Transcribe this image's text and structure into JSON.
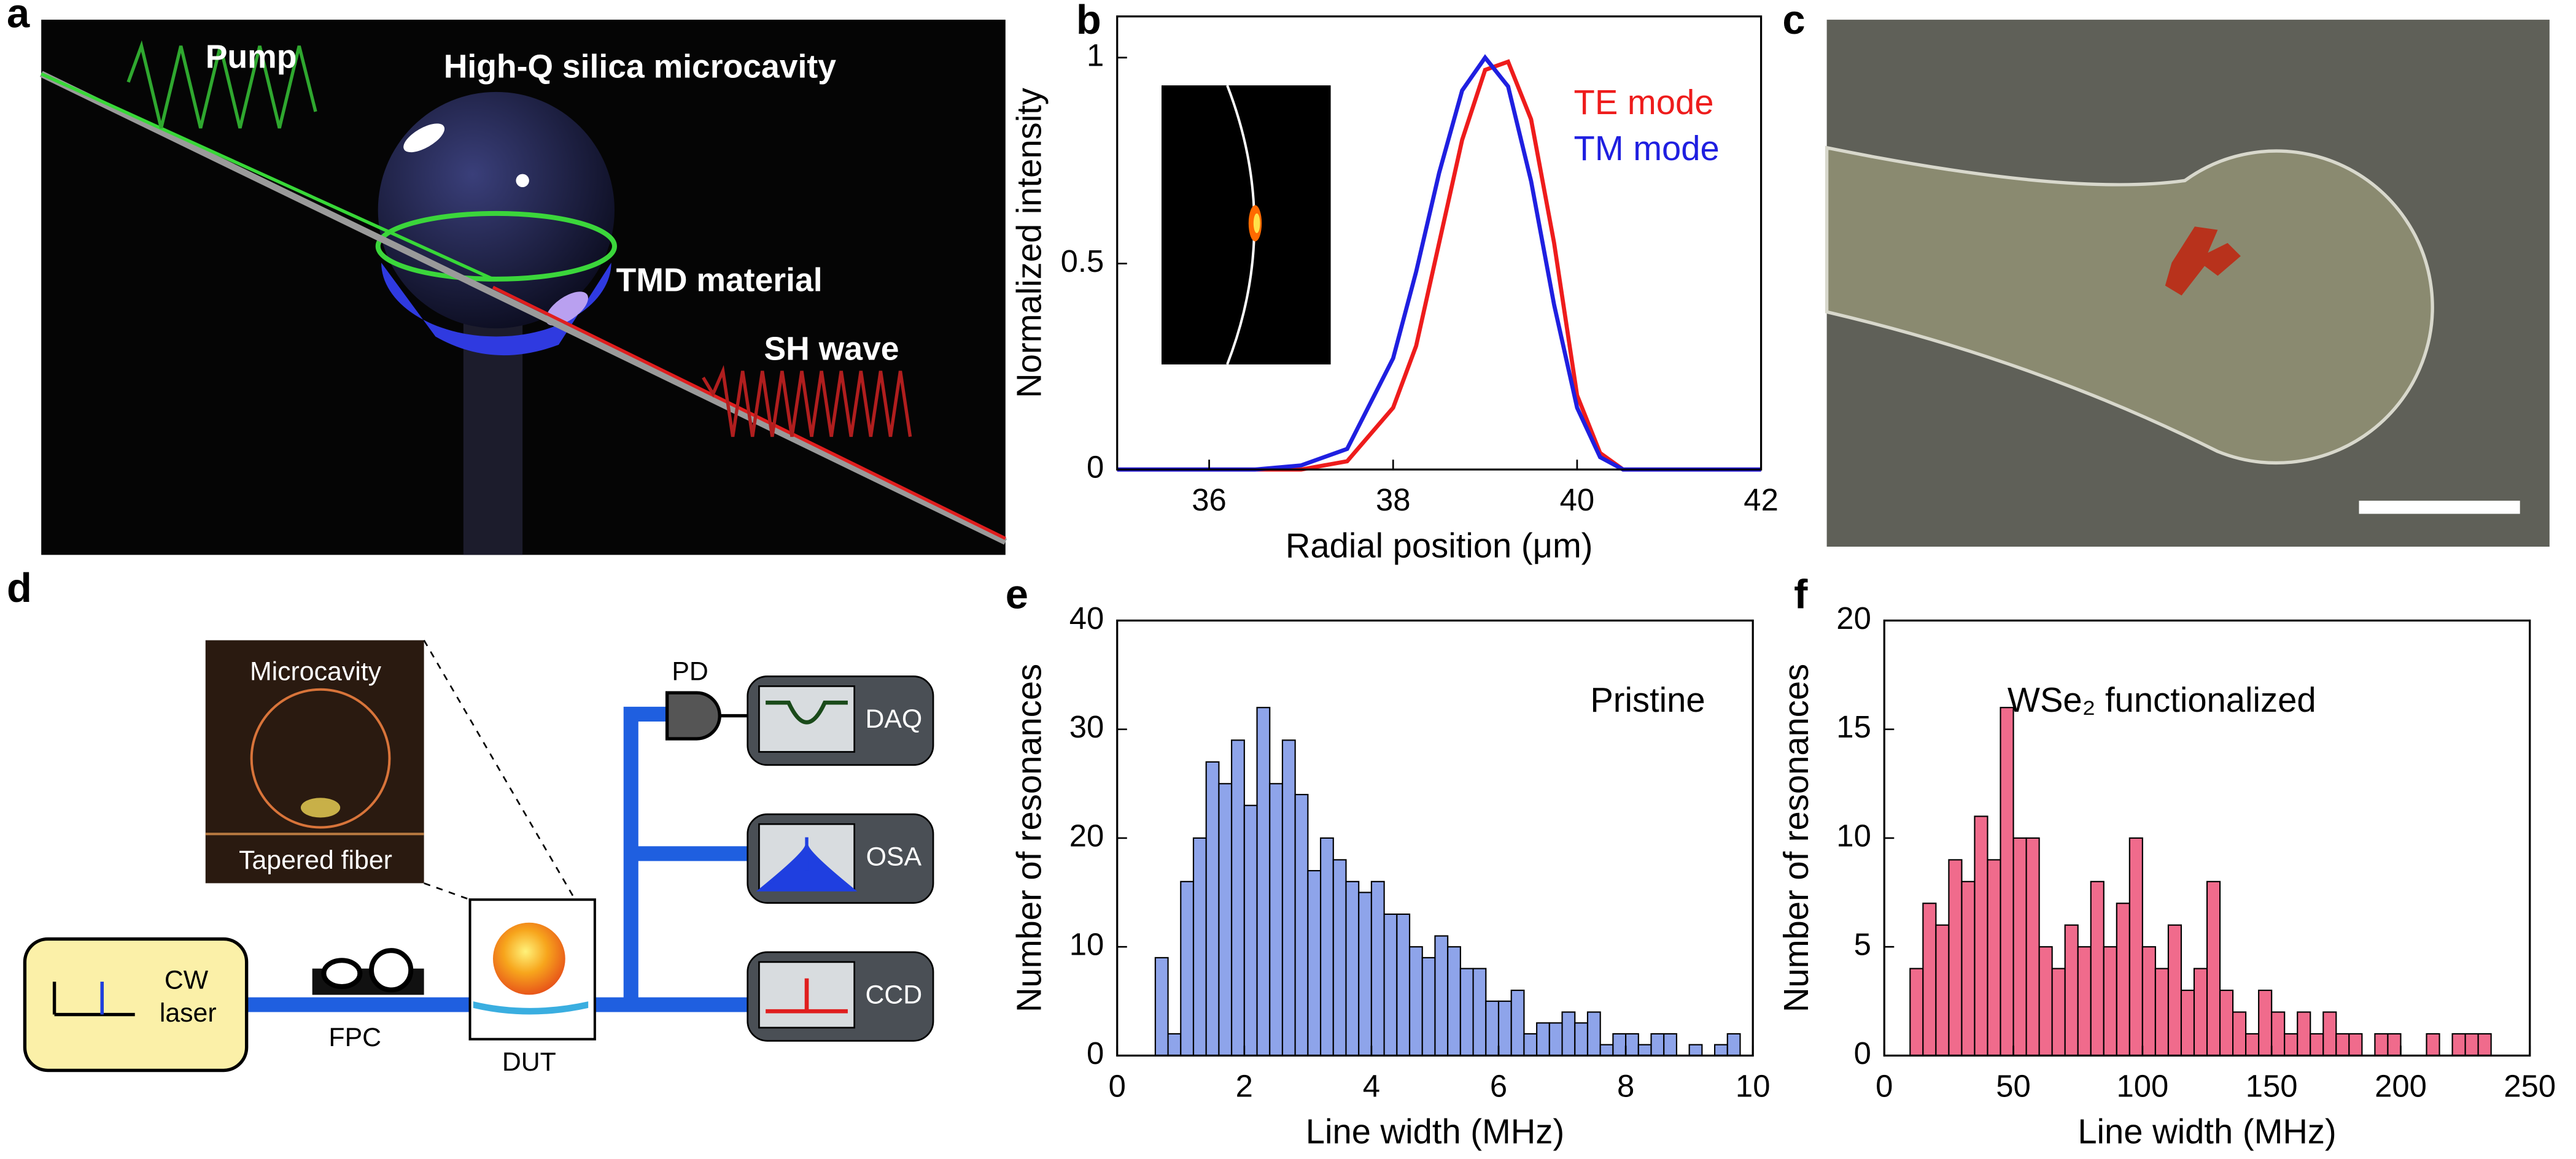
{
  "panel_labels": [
    "a",
    "b",
    "c",
    "d",
    "e",
    "f"
  ],
  "illustration": {
    "labels": [
      "Pump",
      "High-Q silica microcavity",
      "TMD material",
      "SH wave"
    ]
  },
  "diagram": {
    "inset": {
      "top": "Microcavity",
      "bottom": "Tapered fiber"
    },
    "laser": [
      "CW",
      "laser"
    ],
    "fpc": "FPC",
    "dut": "DUT",
    "pd": "PD",
    "instruments": [
      "DAQ",
      "OSA",
      "CCD"
    ]
  },
  "chart_data": [
    {
      "type": "line",
      "xlabel": "Radial position (μm)",
      "ylabel": "Normalized intensity",
      "x": [
        35,
        36,
        36.5,
        37,
        37.5,
        38,
        38.25,
        38.5,
        38.75,
        39,
        39.25,
        39.5,
        39.75,
        40,
        40.25,
        40.5,
        41,
        42
      ],
      "series": [
        {
          "name": "TE mode",
          "color": "#ee1c1c",
          "values": [
            0,
            0,
            0,
            0,
            0.02,
            0.15,
            0.3,
            0.55,
            0.8,
            0.97,
            0.99,
            0.85,
            0.55,
            0.18,
            0.04,
            0,
            0,
            0
          ]
        },
        {
          "name": "TM mode",
          "color": "#1f1fe0",
          "values": [
            0,
            0,
            0,
            0.01,
            0.05,
            0.27,
            0.48,
            0.72,
            0.92,
            1,
            0.93,
            0.7,
            0.4,
            0.15,
            0.03,
            0,
            0,
            0
          ]
        }
      ],
      "xlim": [
        35,
        42
      ],
      "xticks": [
        36,
        38,
        40,
        42
      ],
      "ylim": [
        0,
        1.1
      ],
      "yticks": [
        0,
        0.5,
        1
      ]
    },
    {
      "type": "histogram",
      "xlabel": "Line width (MHz)",
      "ylabel": "Number of resonances",
      "annotation": "Pristine",
      "color": "#8ea4ea",
      "bins": [
        0.6,
        0.8,
        1.0,
        1.2,
        1.4,
        1.6,
        1.8,
        2.0,
        2.2,
        2.4,
        2.6,
        2.8,
        3.0,
        3.2,
        3.4,
        3.6,
        3.8,
        4.0,
        4.2,
        4.4,
        4.6,
        4.8,
        5.0,
        5.2,
        5.4,
        5.6,
        5.8,
        6.0,
        6.2,
        6.4,
        6.6,
        6.8,
        7.0,
        7.2,
        7.4,
        7.6,
        7.8,
        8.0,
        8.2,
        8.4,
        8.6,
        8.8,
        9.0,
        9.2,
        9.4,
        9.6,
        9.8
      ],
      "values": [
        9,
        2,
        16,
        20,
        27,
        25,
        29,
        23,
        32,
        25,
        29,
        24,
        17,
        20,
        18,
        16,
        15,
        16,
        13,
        13,
        10,
        9,
        11,
        10,
        8,
        8,
        5,
        5,
        6,
        2,
        3,
        3,
        4,
        3,
        4,
        1,
        2,
        2,
        1,
        2,
        2,
        0,
        1,
        0,
        1,
        2
      ],
      "xlim": [
        0,
        10
      ],
      "xticks": [
        0,
        2,
        4,
        6,
        8,
        10
      ],
      "ylim": [
        0,
        40
      ],
      "yticks": [
        0,
        10,
        20,
        30,
        40
      ]
    },
    {
      "type": "histogram",
      "xlabel": "Line width (MHz)",
      "ylabel": "Number of resonances",
      "annotation": "WSe₂ functionalized",
      "color": "#f06b8c",
      "bins": [
        10,
        15,
        20,
        25,
        30,
        35,
        40,
        45,
        50,
        55,
        60,
        65,
        70,
        75,
        80,
        85,
        90,
        95,
        100,
        105,
        110,
        115,
        120,
        125,
        130,
        135,
        140,
        145,
        150,
        155,
        160,
        165,
        170,
        175,
        180,
        185,
        190,
        195,
        200,
        205,
        210,
        215,
        220,
        225,
        230,
        235
      ],
      "values": [
        4,
        7,
        6,
        9,
        8,
        11,
        9,
        16,
        10,
        10,
        5,
        4,
        6,
        5,
        8,
        5,
        7,
        10,
        5,
        4,
        6,
        3,
        4,
        8,
        3,
        2,
        1,
        3,
        2,
        1,
        2,
        1,
        2,
        1,
        1,
        0,
        1,
        1,
        0,
        0,
        1,
        0,
        1,
        1,
        1
      ],
      "xlim": [
        0,
        250
      ],
      "xticks": [
        0,
        50,
        100,
        150,
        200,
        250
      ],
      "ylim": [
        0,
        20
      ],
      "yticks": [
        0,
        5,
        10,
        15,
        20
      ]
    }
  ]
}
